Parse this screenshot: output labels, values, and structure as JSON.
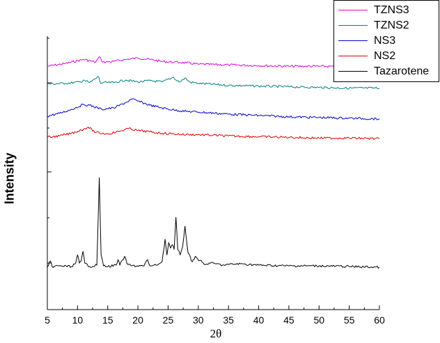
{
  "chart_data": {
    "type": "line",
    "title": "",
    "xlabel": "2θ",
    "ylabel": "Intensity",
    "xlim": [
      5,
      60
    ],
    "x_ticks": [
      5,
      10,
      15,
      20,
      25,
      30,
      35,
      40,
      45,
      50,
      55,
      60
    ],
    "y_ticks_labeled": false,
    "grid": false,
    "legend_position": "top-right",
    "series": [
      {
        "name": "TZNS3",
        "color": "#dd00dd",
        "x": [
          5,
          8,
          11,
          13,
          13.6,
          14.2,
          16,
          18,
          20,
          22,
          24,
          26,
          28,
          30,
          35,
          40,
          45,
          50,
          55,
          60
        ],
        "y": [
          356,
          360,
          366,
          362,
          370,
          362,
          363,
          366,
          368,
          366,
          363,
          362,
          361,
          359,
          358,
          357,
          356,
          356,
          355,
          354
        ]
      },
      {
        "name": "TZNS2",
        "color": "#008080",
        "x": [
          5,
          8,
          10.5,
          11,
          12,
          13.5,
          13.8,
          14.3,
          16,
          18,
          20,
          22,
          24,
          25.9,
          26.3,
          27,
          27.8,
          28.5,
          30,
          35,
          40,
          45,
          50,
          55,
          60
        ],
        "y": [
          330,
          331,
          333,
          336,
          332,
          341,
          331,
          332,
          332,
          336,
          333,
          335,
          333,
          340,
          336,
          333,
          339,
          333,
          331,
          328,
          327,
          326,
          325,
          324,
          324
        ]
      },
      {
        "name": "NS3",
        "color": "#0000cc",
        "x": [
          5,
          7,
          9,
          11,
          12,
          14,
          16,
          18,
          19,
          20,
          22,
          24,
          26,
          28,
          30,
          35,
          40,
          45,
          50,
          55,
          60
        ],
        "y": [
          283,
          287,
          293,
          300,
          299,
          293,
          295,
          303,
          308,
          305,
          299,
          295,
          292,
          290,
          289,
          286,
          284,
          282,
          281,
          280,
          279
        ]
      },
      {
        "name": "NS2",
        "color": "#dd0000",
        "x": [
          5,
          7,
          9,
          11,
          11.8,
          13,
          15,
          17,
          18.5,
          20,
          22,
          24,
          26,
          28,
          30,
          35,
          40,
          45,
          50,
          55,
          60
        ],
        "y": [
          252,
          254,
          258,
          264,
          267,
          259,
          257,
          261,
          265,
          262,
          260,
          258,
          257,
          256,
          256,
          254,
          253,
          252,
          251,
          251,
          250
        ]
      },
      {
        "name": "Tazarotene",
        "color": "#000000",
        "x": [
          5,
          5.2,
          5.5,
          5.8,
          7,
          9,
          9.7,
          10,
          10.3,
          10.6,
          10.9,
          11.2,
          12,
          13.2,
          13.6,
          13.9,
          14.3,
          15,
          16.4,
          16.7,
          17,
          17.8,
          18.2,
          19,
          21,
          21.6,
          21.9,
          22.3,
          23,
          24,
          24.5,
          24.8,
          25.1,
          25.4,
          25.7,
          26,
          26.3,
          26.6,
          27,
          27.4,
          27.8,
          28.3,
          29,
          29.5,
          29.9,
          30.3,
          31,
          32,
          33,
          34,
          35,
          37,
          40,
          45,
          50,
          55,
          60
        ],
        "y": [
          62,
          65,
          71,
          63,
          64,
          63,
          68,
          80,
          68,
          71,
          85,
          68,
          63,
          65,
          193,
          80,
          64,
          63,
          65,
          73,
          65,
          78,
          67,
          64,
          64,
          73,
          65,
          64,
          65,
          70,
          103,
          80,
          98,
          90,
          95,
          88,
          135,
          88,
          80,
          92,
          122,
          83,
          70,
          78,
          74,
          72,
          66,
          68,
          67,
          65,
          66,
          67,
          65,
          64,
          64,
          63,
          62
        ]
      }
    ]
  }
}
